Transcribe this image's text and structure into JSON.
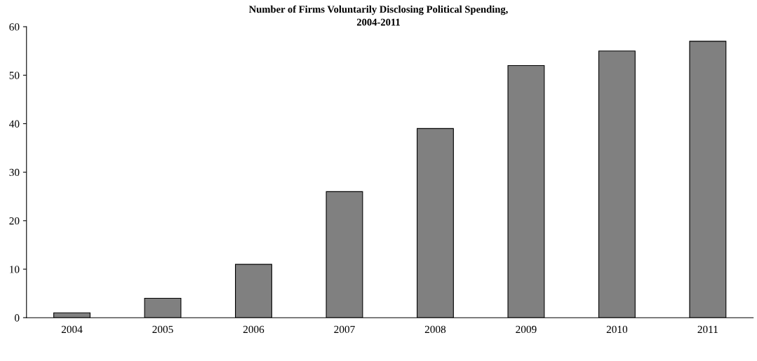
{
  "chart_data": {
    "type": "bar",
    "title": "Number of Firms Voluntarily Disclosing Political Spending,\n2004-2011",
    "categories": [
      "2004",
      "2005",
      "2006",
      "2007",
      "2008",
      "2009",
      "2010",
      "2011"
    ],
    "values": [
      1,
      4,
      11,
      26,
      39,
      52,
      55,
      57
    ],
    "color": "#808080",
    "ylim": [
      0,
      60
    ],
    "yticks": [
      0,
      10,
      20,
      30,
      40,
      50,
      60
    ],
    "grid": false
  }
}
